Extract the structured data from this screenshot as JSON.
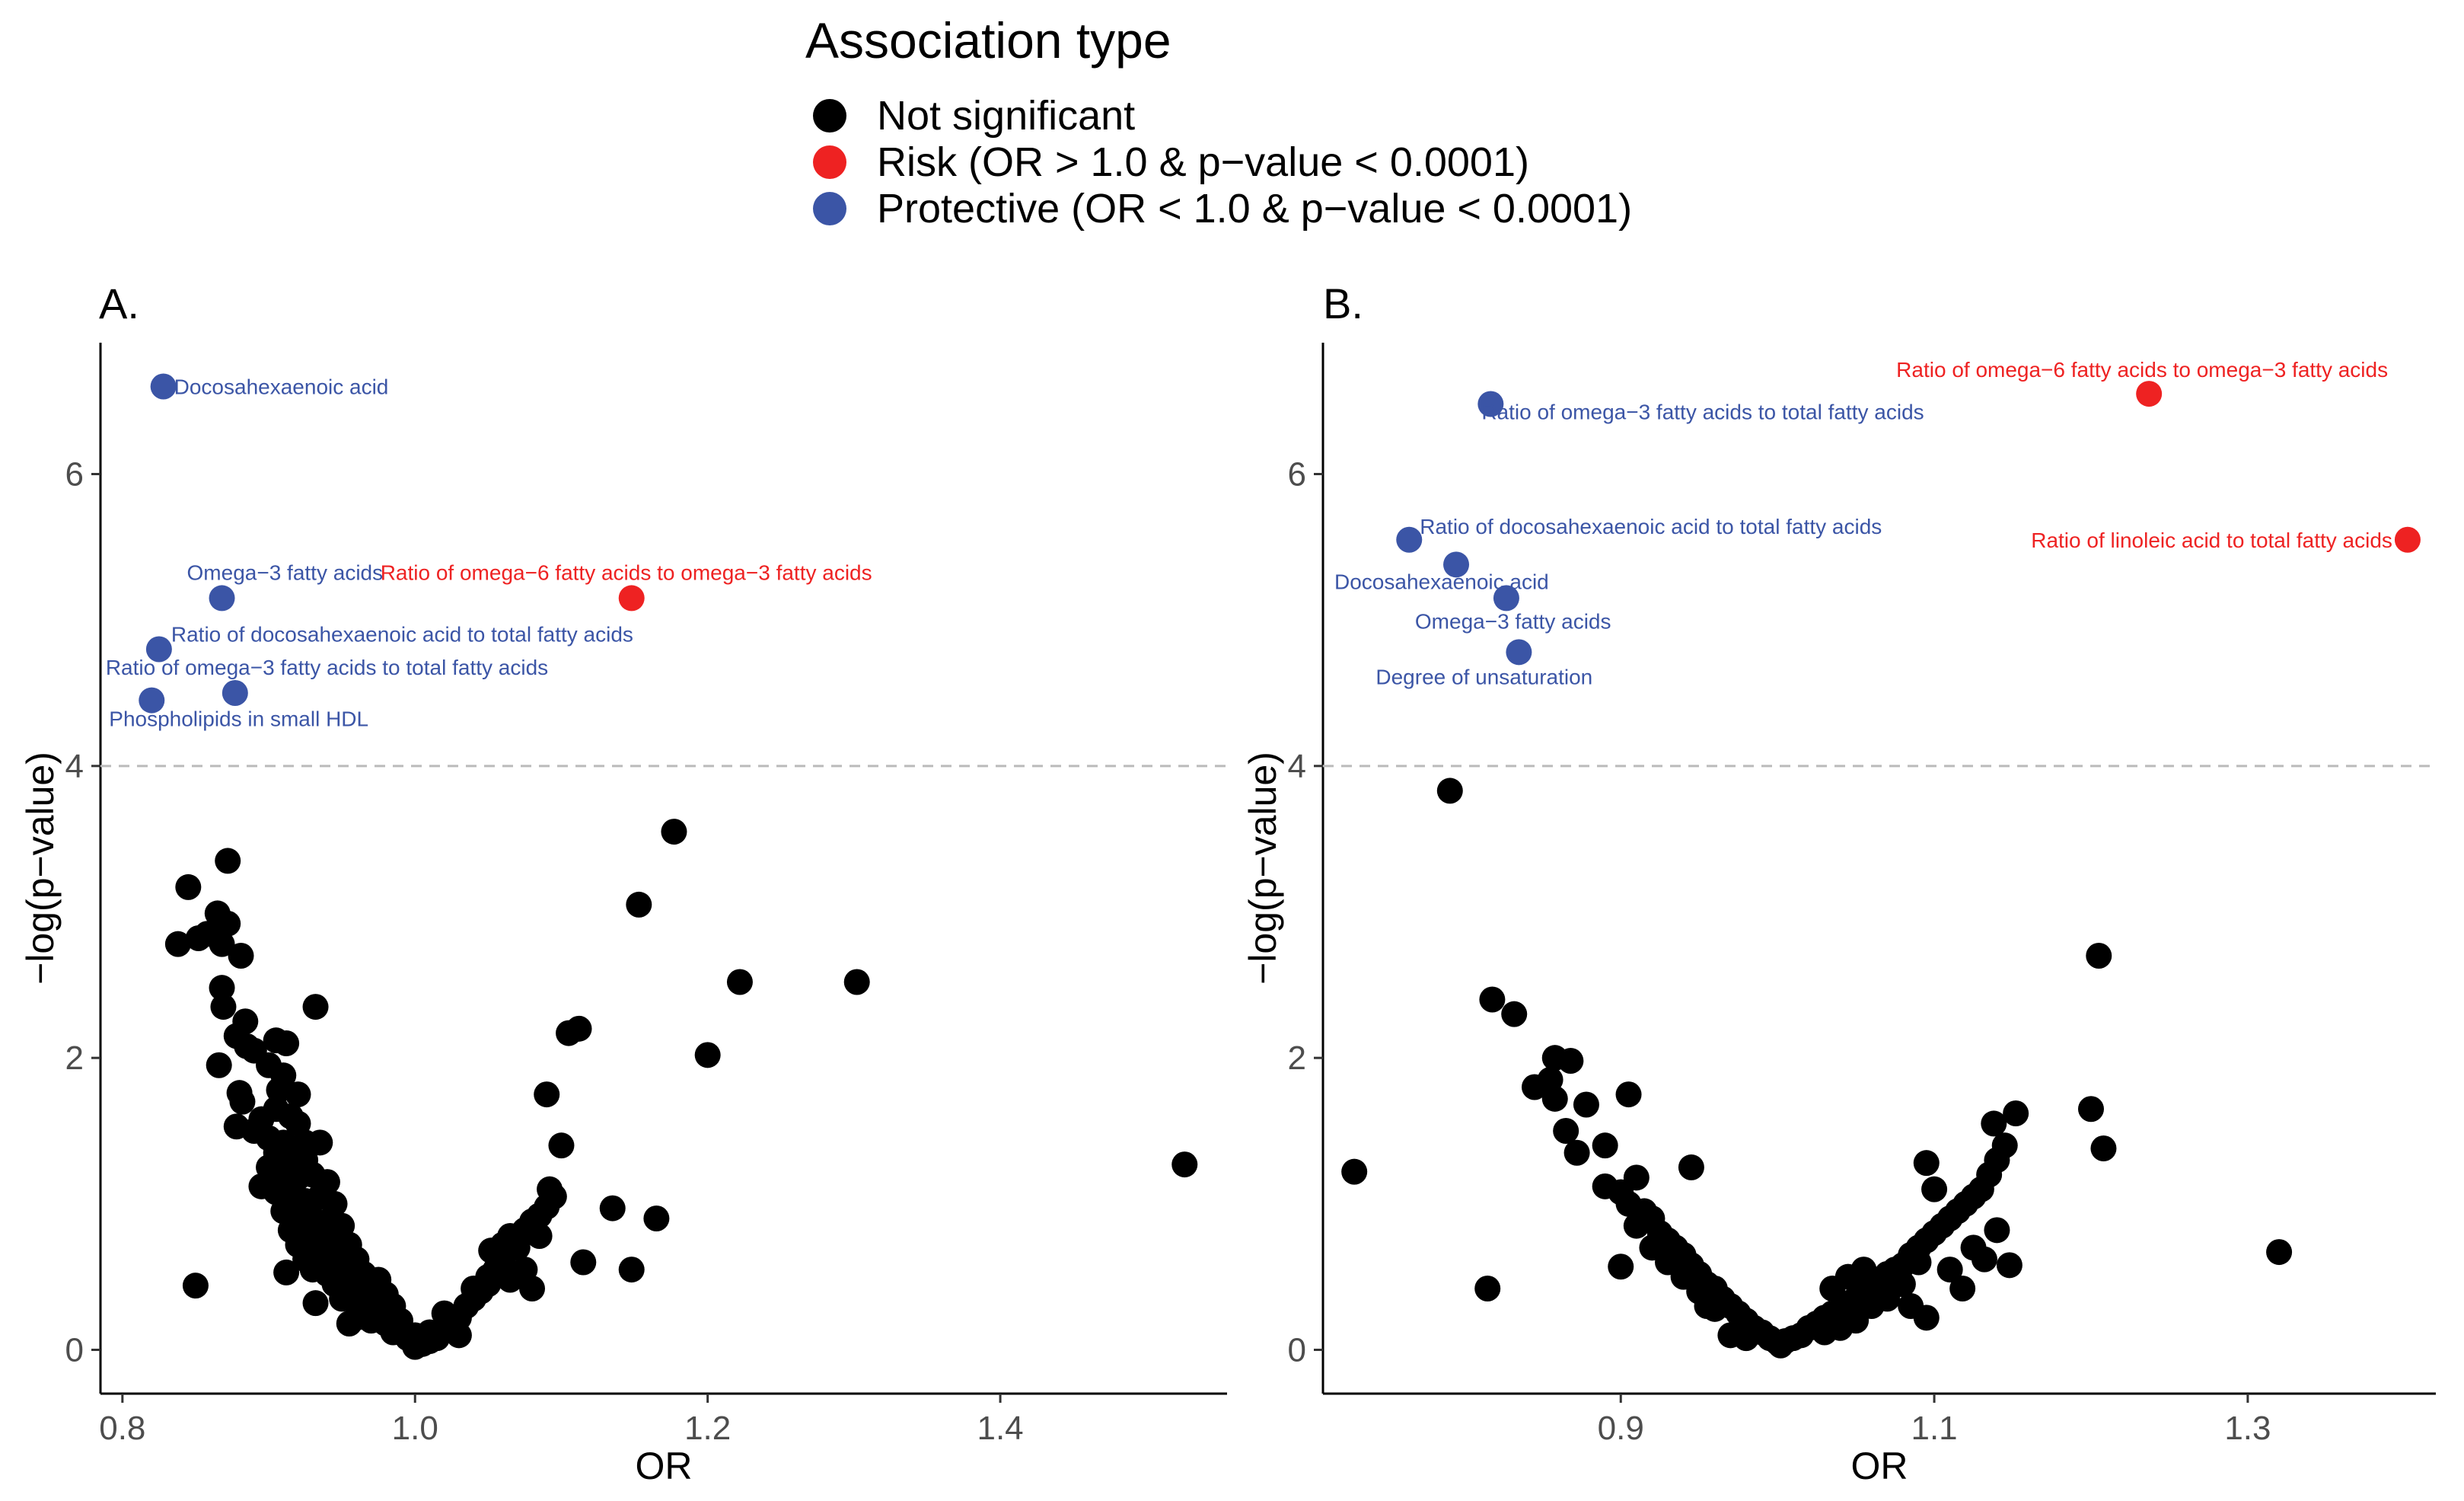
{
  "legend": {
    "title": "Association type",
    "items": [
      {
        "label": "Not significant",
        "color": "#000000"
      },
      {
        "label": "Risk (OR > 1.0 & p−value < 0.0001)",
        "color": "#ee2222"
      },
      {
        "label": "Protective (OR < 1.0 & p−value < 0.0001)",
        "color": "#3b55a6"
      }
    ]
  },
  "chart_data": [
    {
      "type": "scatter",
      "panel_label": "A.",
      "xlabel": "OR",
      "ylabel": "−log(p−value)",
      "xlim": [
        0.785,
        1.555
      ],
      "ylim": [
        -0.3,
        6.9
      ],
      "xticks": [
        0.8,
        1.0,
        1.2,
        1.4
      ],
      "xtick_labels": [
        "0.8",
        "1.0",
        "1.2",
        "1.4"
      ],
      "yticks": [
        0,
        2,
        4,
        6
      ],
      "ytick_labels": [
        "0",
        "2",
        "4",
        "6"
      ],
      "threshold": 4,
      "colors": {
        "ns": "#000000",
        "risk": "#ee2222",
        "protective": "#3b55a6"
      },
      "labeled_points": [
        {
          "x": 0.828,
          "y": 6.6,
          "cat": "protective",
          "label": "Docosahexaenoic acid"
        },
        {
          "x": 0.868,
          "y": 5.15,
          "cat": "protective",
          "label": "Omega−3 fatty acids"
        },
        {
          "x": 1.148,
          "y": 5.15,
          "cat": "risk",
          "label": "Ratio of omega−6 fatty acids to omega−3 fatty acids"
        },
        {
          "x": 0.825,
          "y": 4.8,
          "cat": "protective",
          "label": "Ratio of docosahexaenoic acid to total fatty acids"
        },
        {
          "x": 0.877,
          "y": 4.5,
          "cat": "protective",
          "label": "Ratio of omega−3 fatty acids to total fatty acids"
        },
        {
          "x": 0.82,
          "y": 4.45,
          "cat": "protective",
          "label": "Phospholipids in small HDL"
        }
      ],
      "points": [
        [
          0.845,
          3.17
        ],
        [
          0.872,
          3.35
        ],
        [
          0.838,
          2.78
        ],
        [
          0.852,
          2.82
        ],
        [
          0.858,
          2.85
        ],
        [
          0.865,
          2.99
        ],
        [
          0.872,
          2.92
        ],
        [
          0.868,
          2.78
        ],
        [
          0.881,
          2.7
        ],
        [
          0.868,
          2.48
        ],
        [
          0.869,
          2.35
        ],
        [
          0.932,
          2.35
        ],
        [
          0.884,
          2.25
        ],
        [
          0.878,
          2.15
        ],
        [
          0.885,
          2.08
        ],
        [
          0.89,
          2.05
        ],
        [
          0.905,
          2.12
        ],
        [
          0.912,
          2.1
        ],
        [
          0.866,
          1.95
        ],
        [
          0.9,
          1.95
        ],
        [
          0.91,
          1.88
        ],
        [
          0.907,
          1.78
        ],
        [
          0.92,
          1.75
        ],
        [
          0.88,
          1.76
        ],
        [
          0.882,
          1.7
        ],
        [
          0.895,
          1.58
        ],
        [
          0.905,
          1.65
        ],
        [
          0.915,
          1.6
        ],
        [
          0.92,
          1.55
        ],
        [
          0.878,
          1.53
        ],
        [
          0.89,
          1.5
        ],
        [
          0.9,
          1.45
        ],
        [
          0.91,
          1.42
        ],
        [
          0.925,
          1.42
        ],
        [
          0.935,
          1.42
        ],
        [
          0.905,
          1.35
        ],
        [
          0.915,
          1.32
        ],
        [
          0.925,
          1.3
        ],
        [
          0.9,
          1.25
        ],
        [
          0.91,
          1.2
        ],
        [
          0.92,
          1.18
        ],
        [
          0.93,
          1.2
        ],
        [
          0.94,
          1.15
        ],
        [
          0.895,
          1.12
        ],
        [
          0.905,
          1.08
        ],
        [
          0.915,
          1.05
        ],
        [
          0.925,
          1.02
        ],
        [
          0.935,
          1.05
        ],
        [
          0.945,
          1.0
        ],
        [
          0.91,
          0.95
        ],
        [
          0.92,
          0.92
        ],
        [
          0.93,
          0.9
        ],
        [
          0.94,
          0.88
        ],
        [
          0.95,
          0.85
        ],
        [
          0.915,
          0.82
        ],
        [
          0.925,
          0.8
        ],
        [
          0.935,
          0.78
        ],
        [
          0.945,
          0.75
        ],
        [
          0.955,
          0.72
        ],
        [
          0.92,
          0.72
        ],
        [
          0.93,
          0.7
        ],
        [
          0.94,
          0.68
        ],
        [
          0.95,
          0.65
        ],
        [
          0.96,
          0.62
        ],
        [
          0.925,
          0.62
        ],
        [
          0.935,
          0.6
        ],
        [
          0.945,
          0.58
        ],
        [
          0.955,
          0.55
        ],
        [
          0.965,
          0.52
        ],
        [
          0.975,
          0.48
        ],
        [
          0.93,
          0.55
        ],
        [
          0.94,
          0.52
        ],
        [
          0.95,
          0.5
        ],
        [
          0.96,
          0.45
        ],
        [
          0.97,
          0.42
        ],
        [
          0.98,
          0.38
        ],
        [
          0.945,
          0.45
        ],
        [
          0.955,
          0.42
        ],
        [
          0.965,
          0.38
        ],
        [
          0.975,
          0.35
        ],
        [
          0.985,
          0.3
        ],
        [
          0.95,
          0.35
        ],
        [
          0.96,
          0.32
        ],
        [
          0.97,
          0.28
        ],
        [
          0.98,
          0.25
        ],
        [
          0.99,
          0.2
        ],
        [
          0.96,
          0.22
        ],
        [
          0.97,
          0.2
        ],
        [
          0.98,
          0.18
        ],
        [
          0.99,
          0.15
        ],
        [
          1.0,
          0.1
        ],
        [
          0.985,
          0.12
        ],
        [
          0.995,
          0.08
        ],
        [
          1.0,
          0.05
        ],
        [
          1.005,
          0.04
        ],
        [
          1.01,
          0.06
        ],
        [
          1.015,
          0.08
        ],
        [
          1.01,
          0.12
        ],
        [
          1.02,
          0.15
        ],
        [
          1.025,
          0.2
        ],
        [
          1.03,
          0.22
        ],
        [
          1.02,
          0.25
        ],
        [
          1.03,
          0.1
        ],
        [
          1.035,
          0.3
        ],
        [
          1.04,
          0.35
        ],
        [
          1.045,
          0.4
        ],
        [
          1.05,
          0.45
        ],
        [
          1.04,
          0.42
        ],
        [
          1.05,
          0.5
        ],
        [
          1.055,
          0.55
        ],
        [
          1.06,
          0.6
        ],
        [
          1.052,
          0.68
        ],
        [
          1.06,
          0.72
        ],
        [
          1.065,
          0.78
        ],
        [
          1.07,
          0.7
        ],
        [
          1.075,
          0.82
        ],
        [
          1.08,
          0.88
        ],
        [
          1.085,
          0.92
        ],
        [
          1.09,
          0.98
        ],
        [
          1.095,
          1.05
        ],
        [
          1.092,
          1.1
        ],
        [
          1.075,
          0.55
        ],
        [
          1.065,
          0.48
        ],
        [
          1.085,
          0.78
        ],
        [
          1.08,
          0.42
        ],
        [
          1.1,
          1.4
        ],
        [
          1.09,
          1.75
        ],
        [
          1.105,
          2.17
        ],
        [
          1.112,
          2.2
        ],
        [
          1.135,
          0.97
        ],
        [
          1.115,
          0.6
        ],
        [
          1.148,
          0.55
        ],
        [
          1.165,
          0.9
        ],
        [
          1.153,
          3.05
        ],
        [
          1.177,
          3.55
        ],
        [
          1.2,
          2.02
        ],
        [
          1.222,
          2.52
        ],
        [
          1.302,
          2.52
        ],
        [
          1.526,
          1.27
        ],
        [
          0.85,
          0.44
        ],
        [
          0.932,
          0.32
        ],
        [
          0.912,
          0.53
        ],
        [
          0.955,
          0.18
        ],
        [
          1.0,
          0.02
        ]
      ]
    },
    {
      "type": "scatter",
      "panel_label": "B.",
      "xlabel": "OR",
      "ylabel": "−log(p−value)",
      "xlim": [
        0.71,
        1.42
      ],
      "ylim": [
        -0.3,
        6.9
      ],
      "xticks": [
        0.9,
        1.1,
        1.3
      ],
      "xtick_labels": [
        "0.9",
        "1.1",
        "1.3"
      ],
      "yticks": [
        0,
        2,
        4,
        6
      ],
      "ytick_labels": [
        "0",
        "2",
        "4",
        "6"
      ],
      "threshold": 4,
      "colors": {
        "ns": "#000000",
        "risk": "#ee2222",
        "protective": "#3b55a6"
      },
      "labeled_points": [
        {
          "x": 1.237,
          "y": 6.55,
          "cat": "risk",
          "label": "Ratio of omega−6 fatty acids to omega−3 fatty acids"
        },
        {
          "x": 0.817,
          "y": 6.48,
          "cat": "protective",
          "label": "Ratio of omega−3 fatty acids to total fatty acids"
        },
        {
          "x": 0.765,
          "y": 5.55,
          "cat": "protective",
          "label": "Ratio of docosahexaenoic acid to total fatty acids"
        },
        {
          "x": 1.402,
          "y": 5.55,
          "cat": "risk",
          "label": "Ratio of linoleic acid to total fatty acids"
        },
        {
          "x": 0.795,
          "y": 5.38,
          "cat": "protective",
          "label": "Docosahexaenoic acid"
        },
        {
          "x": 0.827,
          "y": 5.15,
          "cat": "protective",
          "label": "Omega−3 fatty acids"
        },
        {
          "x": 0.835,
          "y": 4.78,
          "cat": "protective",
          "label": "Degree of unsaturation"
        }
      ],
      "points": [
        [
          0.791,
          3.83
        ],
        [
          0.818,
          2.4
        ],
        [
          0.832,
          2.3
        ],
        [
          0.845,
          1.8
        ],
        [
          0.855,
          1.85
        ],
        [
          0.858,
          2.0
        ],
        [
          0.868,
          1.98
        ],
        [
          0.858,
          1.72
        ],
        [
          0.865,
          1.5
        ],
        [
          0.878,
          1.68
        ],
        [
          0.872,
          1.35
        ],
        [
          0.89,
          1.4
        ],
        [
          0.905,
          1.75
        ],
        [
          0.89,
          1.12
        ],
        [
          0.9,
          1.08
        ],
        [
          0.91,
          1.18
        ],
        [
          0.905,
          1.0
        ],
        [
          0.915,
          0.95
        ],
        [
          0.92,
          0.9
        ],
        [
          0.91,
          0.85
        ],
        [
          0.925,
          0.8
        ],
        [
          0.93,
          0.75
        ],
        [
          0.92,
          0.7
        ],
        [
          0.935,
          0.7
        ],
        [
          0.94,
          0.65
        ],
        [
          0.93,
          0.6
        ],
        [
          0.945,
          0.58
        ],
        [
          0.95,
          0.52
        ],
        [
          0.94,
          0.5
        ],
        [
          0.955,
          0.45
        ],
        [
          0.96,
          0.42
        ],
        [
          0.95,
          0.4
        ],
        [
          0.965,
          0.35
        ],
        [
          0.97,
          0.3
        ],
        [
          0.96,
          0.28
        ],
        [
          0.975,
          0.25
        ],
        [
          0.98,
          0.2
        ],
        [
          0.985,
          0.15
        ],
        [
          0.99,
          0.12
        ],
        [
          0.995,
          0.08
        ],
        [
          1.0,
          0.05
        ],
        [
          1.002,
          0.03
        ],
        [
          1.005,
          0.06
        ],
        [
          1.01,
          0.08
        ],
        [
          1.015,
          0.1
        ],
        [
          1.02,
          0.15
        ],
        [
          1.025,
          0.18
        ],
        [
          1.03,
          0.22
        ],
        [
          1.035,
          0.25
        ],
        [
          1.04,
          0.3
        ],
        [
          1.045,
          0.32
        ],
        [
          1.05,
          0.35
        ],
        [
          1.055,
          0.4
        ],
        [
          1.06,
          0.42
        ],
        [
          1.065,
          0.48
        ],
        [
          1.07,
          0.52
        ],
        [
          1.075,
          0.55
        ],
        [
          1.08,
          0.58
        ],
        [
          1.085,
          0.65
        ],
        [
          1.09,
          0.7
        ],
        [
          1.095,
          0.75
        ],
        [
          1.1,
          0.8
        ],
        [
          1.105,
          0.85
        ],
        [
          1.11,
          0.9
        ],
        [
          1.115,
          0.95
        ],
        [
          1.12,
          1.0
        ],
        [
          1.125,
          1.05
        ],
        [
          1.13,
          1.1
        ],
        [
          1.135,
          1.2
        ],
        [
          1.14,
          1.3
        ],
        [
          1.145,
          1.4
        ],
        [
          1.138,
          1.55
        ],
        [
          1.152,
          1.62
        ],
        [
          1.095,
          1.28
        ],
        [
          1.1,
          1.1
        ],
        [
          1.055,
          0.55
        ],
        [
          1.07,
          0.35
        ],
        [
          1.08,
          0.45
        ],
        [
          1.09,
          0.6
        ],
        [
          1.06,
          0.3
        ],
        [
          1.05,
          0.2
        ],
        [
          1.04,
          0.15
        ],
        [
          1.03,
          0.12
        ],
        [
          1.045,
          0.5
        ],
        [
          1.035,
          0.42
        ],
        [
          1.085,
          0.3
        ],
        [
          1.095,
          0.22
        ],
        [
          1.11,
          0.55
        ],
        [
          1.118,
          0.42
        ],
        [
          1.125,
          0.7
        ],
        [
          1.132,
          0.62
        ],
        [
          1.14,
          0.82
        ],
        [
          1.148,
          0.58
        ],
        [
          1.2,
          1.65
        ],
        [
          1.205,
          2.7
        ],
        [
          1.208,
          1.38
        ],
        [
          1.32,
          0.67
        ],
        [
          0.73,
          1.22
        ],
        [
          0.815,
          0.42
        ],
        [
          0.945,
          1.25
        ],
        [
          0.9,
          0.57
        ],
        [
          0.98,
          0.08
        ],
        [
          0.97,
          0.1
        ],
        [
          0.955,
          0.3
        ]
      ]
    }
  ]
}
